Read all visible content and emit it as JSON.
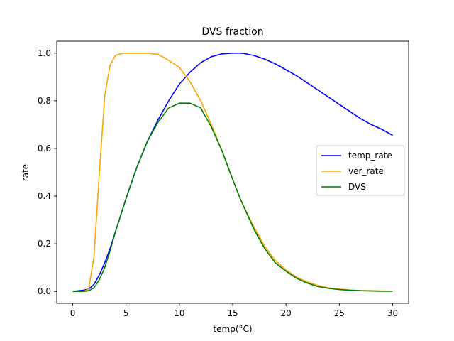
{
  "chart_data": {
    "type": "line",
    "title": "DVS fraction",
    "xlabel": "temp(°C)",
    "ylabel": "rate",
    "xlim": [
      -1.5,
      31.5
    ],
    "ylim": [
      -0.05,
      1.05
    ],
    "xticks": [
      0,
      5,
      10,
      15,
      20,
      25,
      30
    ],
    "yticks": [
      0.0,
      0.2,
      0.4,
      0.6,
      0.8,
      1.0
    ],
    "xtick_labels": [
      "0",
      "5",
      "10",
      "15",
      "20",
      "25",
      "30"
    ],
    "ytick_labels": [
      "0.0",
      "0.2",
      "0.4",
      "0.6",
      "0.8",
      "1.0"
    ],
    "grid": false,
    "legend_position": "center-right",
    "x": [
      0,
      1,
      1.5,
      2,
      2.5,
      3,
      3.5,
      4,
      4.5,
      5,
      6,
      7,
      8,
      9,
      10,
      11,
      12,
      13,
      14,
      15,
      15.7,
      16,
      17,
      18,
      19,
      20,
      21,
      22,
      23,
      24,
      25,
      26,
      27,
      28,
      29,
      30
    ],
    "series": [
      {
        "name": "temp_rate",
        "color": "#0000ff",
        "values": [
          0.0,
          0.005,
          0.01,
          0.03,
          0.07,
          0.12,
          0.18,
          0.25,
          0.32,
          0.39,
          0.52,
          0.63,
          0.72,
          0.8,
          0.87,
          0.92,
          0.96,
          0.985,
          0.997,
          1.0,
          1.0,
          0.999,
          0.99,
          0.975,
          0.955,
          0.93,
          0.905,
          0.875,
          0.845,
          0.815,
          0.785,
          0.755,
          0.725,
          0.7,
          0.68,
          0.655
        ]
      },
      {
        "name": "ver_rate",
        "color": "#ffa500",
        "values": [
          0.0,
          0.0,
          0.01,
          0.15,
          0.5,
          0.82,
          0.95,
          0.99,
          0.998,
          1.0,
          1.0,
          1.0,
          0.995,
          0.97,
          0.94,
          0.88,
          0.8,
          0.7,
          0.59,
          0.47,
          0.39,
          0.36,
          0.27,
          0.19,
          0.13,
          0.09,
          0.06,
          0.04,
          0.025,
          0.015,
          0.01,
          0.006,
          0.004,
          0.003,
          0.002,
          0.001
        ]
      },
      {
        "name": "DVS",
        "color": "#008000",
        "values": [
          0.0,
          0.0,
          0.003,
          0.015,
          0.05,
          0.1,
          0.17,
          0.25,
          0.32,
          0.39,
          0.52,
          0.63,
          0.71,
          0.77,
          0.79,
          0.79,
          0.77,
          0.69,
          0.59,
          0.47,
          0.39,
          0.36,
          0.26,
          0.18,
          0.12,
          0.085,
          0.055,
          0.035,
          0.02,
          0.013,
          0.008,
          0.005,
          0.003,
          0.002,
          0.001,
          0.001
        ]
      }
    ]
  }
}
